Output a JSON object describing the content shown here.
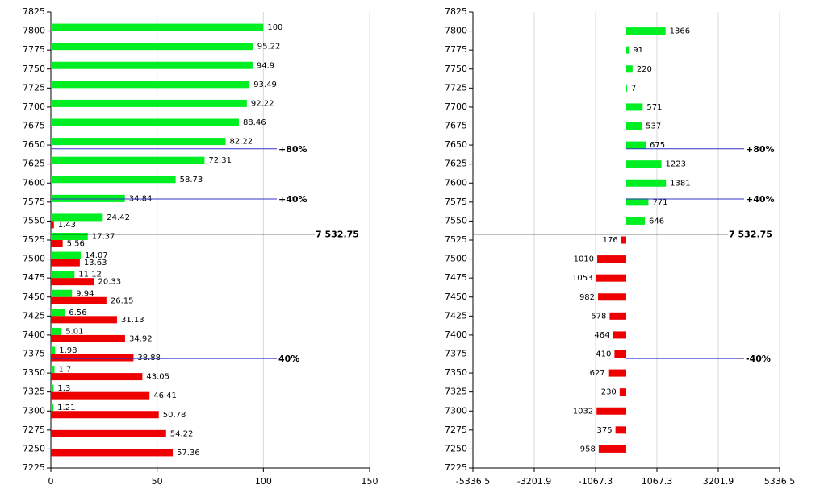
{
  "colors": {
    "up": "#00ee22",
    "down": "#ee0000",
    "grid": "#d8d8d8",
    "marker": "#3333cc",
    "axis": "#000000"
  },
  "chart_data": [
    {
      "type": "bar",
      "orientation": "horizontal",
      "y_ticks": [
        "7825",
        "7800",
        "7775",
        "7750",
        "7725",
        "7700",
        "7675",
        "7650",
        "7625",
        "7600",
        "7575",
        "7550",
        "7525",
        "7500",
        "7475",
        "7450",
        "7425",
        "7400",
        "7375",
        "7350",
        "7325",
        "7300",
        "7275",
        "7250",
        "7225"
      ],
      "x_ticks": [
        "0",
        "50",
        "100",
        "150"
      ],
      "xlim": [
        0,
        150
      ],
      "ylim": [
        7225,
        7825
      ],
      "grid": "vertical",
      "series": [
        {
          "color": "up",
          "points": [
            {
              "y": 7800,
              "value": 100,
              "label": "100"
            },
            {
              "y": 7775,
              "value": 95.22,
              "label": "95.22"
            },
            {
              "y": 7750,
              "value": 94.9,
              "label": "94.9"
            },
            {
              "y": 7725,
              "value": 93.49,
              "label": "93.49"
            },
            {
              "y": 7700,
              "value": 92.22,
              "label": "92.22"
            },
            {
              "y": 7675,
              "value": 88.46,
              "label": "88.46"
            },
            {
              "y": 7650,
              "value": 82.22,
              "label": "82.22"
            },
            {
              "y": 7625,
              "value": 72.31,
              "label": "72.31"
            },
            {
              "y": 7600,
              "value": 58.73,
              "label": "58.73"
            },
            {
              "y": 7575,
              "value": 34.84,
              "label": "34.84"
            },
            {
              "y": 7550,
              "value": 24.42,
              "label": "24.42"
            },
            {
              "y": 7525,
              "value": 17.37,
              "label": "17.37"
            },
            {
              "y": 7500,
              "value": 14.07,
              "label": "14.07"
            },
            {
              "y": 7475,
              "value": 11.12,
              "label": "11.12"
            },
            {
              "y": 7450,
              "value": 9.94,
              "label": "9.94"
            },
            {
              "y": 7425,
              "value": 6.56,
              "label": "6.56"
            },
            {
              "y": 7400,
              "value": 5.01,
              "label": "5.01"
            },
            {
              "y": 7375,
              "value": 1.98,
              "label": "1.98"
            },
            {
              "y": 7350,
              "value": 1.7,
              "label": "1.7"
            },
            {
              "y": 7325,
              "value": 1.3,
              "label": "1.3"
            },
            {
              "y": 7300,
              "value": 1.21,
              "label": "1.21"
            }
          ]
        },
        {
          "color": "down",
          "points": [
            {
              "y": 7550,
              "value": 1.43,
              "label": "1.43"
            },
            {
              "y": 7525,
              "value": 5.56,
              "label": "5.56"
            },
            {
              "y": 7500,
              "value": 13.63,
              "label": "13.63"
            },
            {
              "y": 7475,
              "value": 20.33,
              "label": "20.33"
            },
            {
              "y": 7450,
              "value": 26.15,
              "label": "26.15"
            },
            {
              "y": 7425,
              "value": 31.13,
              "label": "31.13"
            },
            {
              "y": 7400,
              "value": 34.92,
              "label": "34.92"
            },
            {
              "y": 7375,
              "value": 38.88,
              "label": "38.88"
            },
            {
              "y": 7350,
              "value": 43.05,
              "label": "43.05"
            },
            {
              "y": 7325,
              "value": 46.41,
              "label": "46.41"
            },
            {
              "y": 7300,
              "value": 50.78,
              "label": "50.78"
            },
            {
              "y": 7275,
              "value": 54.22,
              "label": "54.22"
            },
            {
              "y": 7250,
              "value": 57.36,
              "label": "57.36"
            }
          ]
        }
      ],
      "markers": [
        {
          "y": 7645,
          "label": "+80%",
          "color": "marker"
        },
        {
          "y": 7579,
          "label": "+40%",
          "color": "marker"
        },
        {
          "y": 7532.75,
          "label": "7 532.75",
          "color": "axis"
        },
        {
          "y": 7369,
          "label": "40%",
          "color": "marker"
        }
      ]
    },
    {
      "type": "bar",
      "orientation": "horizontal",
      "y_ticks": [
        "7825",
        "7800",
        "7775",
        "7750",
        "7725",
        "7700",
        "7675",
        "7650",
        "7625",
        "7600",
        "7575",
        "7550",
        "7525",
        "7500",
        "7475",
        "7450",
        "7425",
        "7400",
        "7375",
        "7350",
        "7325",
        "7300",
        "7275",
        "7250",
        "7225"
      ],
      "x_ticks": [
        "-5336.5",
        "-3201.9",
        "-1067.3",
        "1067.3",
        "3201.9",
        "5336.5"
      ],
      "xlim": [
        -5336.5,
        5336.5
      ],
      "ylim": [
        7225,
        7825
      ],
      "grid": "vertical",
      "series": [
        {
          "color": "up",
          "points": [
            {
              "y": 7800,
              "value": 1366,
              "label": "1366"
            },
            {
              "y": 7775,
              "value": 91,
              "label": "91"
            },
            {
              "y": 7750,
              "value": 220,
              "label": "220"
            },
            {
              "y": 7725,
              "value": 7,
              "label": "7"
            },
            {
              "y": 7700,
              "value": 571,
              "label": "571"
            },
            {
              "y": 7675,
              "value": 537,
              "label": "537"
            },
            {
              "y": 7650,
              "value": 675,
              "label": "675"
            },
            {
              "y": 7625,
              "value": 1223,
              "label": "1223"
            },
            {
              "y": 7600,
              "value": 1381,
              "label": "1381"
            },
            {
              "y": 7575,
              "value": 771,
              "label": "771"
            },
            {
              "y": 7550,
              "value": 646,
              "label": "646"
            }
          ]
        },
        {
          "color": "down",
          "points": [
            {
              "y": 7525,
              "value": -176,
              "label": "176"
            },
            {
              "y": 7500,
              "value": -1010,
              "label": "1010"
            },
            {
              "y": 7475,
              "value": -1053,
              "label": "1053"
            },
            {
              "y": 7450,
              "value": -982,
              "label": "982"
            },
            {
              "y": 7425,
              "value": -578,
              "label": "578"
            },
            {
              "y": 7400,
              "value": -464,
              "label": "464"
            },
            {
              "y": 7375,
              "value": -410,
              "label": "410"
            },
            {
              "y": 7350,
              "value": -627,
              "label": "627"
            },
            {
              "y": 7325,
              "value": -230,
              "label": "230"
            },
            {
              "y": 7300,
              "value": -1032,
              "label": "1032"
            },
            {
              "y": 7275,
              "value": -375,
              "label": "375"
            },
            {
              "y": 7250,
              "value": -958,
              "label": "958"
            }
          ]
        }
      ],
      "markers": [
        {
          "y": 7645,
          "label": "+80%",
          "color": "marker"
        },
        {
          "y": 7579,
          "label": "+40%",
          "color": "marker"
        },
        {
          "y": 7532.75,
          "label": "7 532.75",
          "color": "axis"
        },
        {
          "y": 7369,
          "label": "-40%",
          "color": "marker"
        }
      ]
    }
  ]
}
